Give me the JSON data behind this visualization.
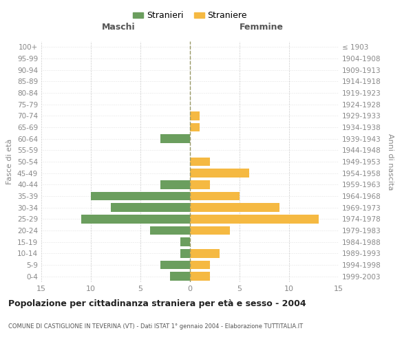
{
  "age_groups": [
    "0-4",
    "5-9",
    "10-14",
    "15-19",
    "20-24",
    "25-29",
    "30-34",
    "35-39",
    "40-44",
    "45-49",
    "50-54",
    "55-59",
    "60-64",
    "65-69",
    "70-74",
    "75-79",
    "80-84",
    "85-89",
    "90-94",
    "95-99",
    "100+"
  ],
  "birth_years": [
    "1999-2003",
    "1994-1998",
    "1989-1993",
    "1984-1988",
    "1979-1983",
    "1974-1978",
    "1969-1973",
    "1964-1968",
    "1959-1963",
    "1954-1958",
    "1949-1953",
    "1944-1948",
    "1939-1943",
    "1934-1938",
    "1929-1933",
    "1924-1928",
    "1919-1923",
    "1914-1918",
    "1909-1913",
    "1904-1908",
    "≤ 1903"
  ],
  "males": [
    2,
    3,
    1,
    1,
    4,
    11,
    8,
    10,
    3,
    0,
    0,
    0,
    3,
    0,
    0,
    0,
    0,
    0,
    0,
    0,
    0
  ],
  "females": [
    2,
    2,
    3,
    0,
    4,
    13,
    9,
    5,
    2,
    6,
    2,
    0,
    0,
    1,
    1,
    0,
    0,
    0,
    0,
    0,
    0
  ],
  "male_color": "#6b9e5e",
  "female_color": "#f5b942",
  "title": "Popolazione per cittadinanza straniera per età e sesso - 2004",
  "subtitle": "COMUNE DI CASTIGLIONE IN TEVERINA (VT) - Dati ISTAT 1° gennaio 2004 - Elaborazione TUTTITALIA.IT",
  "ylabel_left": "Fasce di età",
  "ylabel_right": "Anni di nascita",
  "xlabel_male": "Maschi",
  "xlabel_female": "Femmine",
  "legend_male": "Stranieri",
  "legend_female": "Straniere",
  "xlim": 15,
  "background_color": "#ffffff",
  "grid_color": "#cccccc",
  "tick_color": "#888888",
  "bar_height": 0.75
}
